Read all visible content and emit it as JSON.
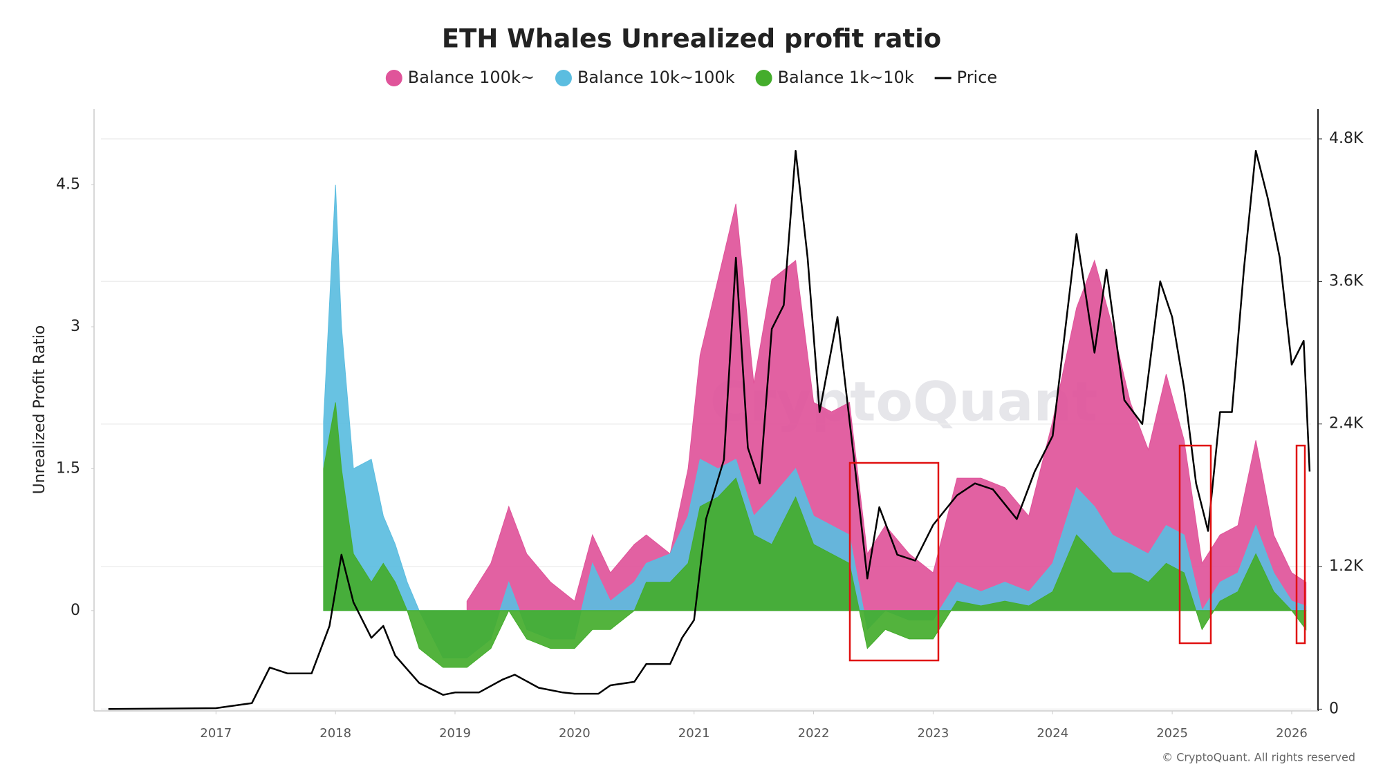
{
  "chart_data": {
    "type": "area-line",
    "title": "ETH Whales Unrealized profit ratio",
    "y_label": "Unrealized Profit Ratio",
    "watermark": "CryptoQuant",
    "credit": "© CryptoQuant. All rights reserved",
    "xlim": [
      2015.98,
      2026.22
    ],
    "xticks": [
      2017,
      2018,
      2019,
      2020,
      2021,
      2022,
      2023,
      2024,
      2025,
      2026
    ],
    "ylim": [
      -1.06,
      5.3
    ],
    "yticks": [
      0,
      1.5,
      3,
      4.5
    ],
    "y2lim": [
      -15,
      5050
    ],
    "y2ticks": [
      0,
      {
        "value": 1200,
        "label": "1.2K"
      },
      {
        "value": 2400,
        "label": "2.4K"
      },
      {
        "value": 3600,
        "label": "3.6K"
      },
      {
        "value": 4800,
        "label": "4.8K"
      }
    ],
    "grid": true,
    "series": [
      {
        "name": "Balance 100k~",
        "color": "#e0549a",
        "x": [
          2017.9,
          2018.0,
          2018.05,
          2018.15,
          2018.3,
          2018.4,
          2018.5,
          2018.6,
          2018.7,
          2018.9,
          2019.1,
          2019.3,
          2019.45,
          2019.6,
          2019.8,
          2020.0,
          2020.15,
          2020.3,
          2020.5,
          2020.6,
          2020.8,
          2020.95,
          2021.05,
          2021.2,
          2021.35,
          2021.5,
          2021.65,
          2021.85,
          2022.0,
          2022.15,
          2022.3,
          2022.45,
          2022.6,
          2022.8,
          2023.0,
          2023.2,
          2023.4,
          2023.6,
          2023.8,
          2024.0,
          2024.2,
          2024.35,
          2024.5,
          2024.65,
          2024.8,
          2024.95,
          2025.1,
          2025.25,
          2025.4,
          2025.55,
          2025.7,
          2025.85,
          2026.0,
          2026.12
        ],
        "values": [
          null,
          null,
          null,
          null,
          null,
          null,
          null,
          null,
          null,
          null,
          0.1,
          0.5,
          1.1,
          0.6,
          0.3,
          0.1,
          0.8,
          0.4,
          0.7,
          0.8,
          0.6,
          1.5,
          2.7,
          3.5,
          4.3,
          2.4,
          3.5,
          3.7,
          2.2,
          2.1,
          2.2,
          0.6,
          0.9,
          0.6,
          0.4,
          1.4,
          1.4,
          1.3,
          1.0,
          2.0,
          3.2,
          3.7,
          3.0,
          2.2,
          1.7,
          2.5,
          1.8,
          0.5,
          0.8,
          0.9,
          1.8,
          0.8,
          0.4,
          0.3
        ]
      },
      {
        "name": "Balance 10k~100k",
        "color": "#5bbde0",
        "x": [
          2017.9,
          2018.0,
          2018.05,
          2018.15,
          2018.3,
          2018.4,
          2018.5,
          2018.6,
          2018.7,
          2018.9,
          2019.1,
          2019.3,
          2019.45,
          2019.6,
          2019.8,
          2020.0,
          2020.15,
          2020.3,
          2020.5,
          2020.6,
          2020.8,
          2020.95,
          2021.05,
          2021.2,
          2021.35,
          2021.5,
          2021.65,
          2021.85,
          2022.0,
          2022.15,
          2022.3,
          2022.45,
          2022.6,
          2022.8,
          2023.0,
          2023.2,
          2023.4,
          2023.6,
          2023.8,
          2024.0,
          2024.2,
          2024.35,
          2024.5,
          2024.65,
          2024.8,
          2024.95,
          2025.1,
          2025.25,
          2025.4,
          2025.55,
          2025.7,
          2025.85,
          2026.0,
          2026.12
        ],
        "values": [
          2.0,
          4.5,
          3.0,
          1.5,
          1.6,
          1.0,
          0.7,
          0.3,
          0.0,
          -0.5,
          -0.5,
          -0.3,
          0.3,
          -0.2,
          -0.3,
          -0.3,
          0.5,
          0.1,
          0.3,
          0.5,
          0.6,
          1.0,
          1.6,
          1.5,
          1.6,
          1.0,
          1.2,
          1.5,
          1.0,
          0.9,
          0.8,
          -0.2,
          0.0,
          -0.1,
          -0.1,
          0.3,
          0.2,
          0.3,
          0.2,
          0.5,
          1.3,
          1.1,
          0.8,
          0.7,
          0.6,
          0.9,
          0.8,
          0.0,
          0.3,
          0.4,
          0.9,
          0.4,
          0.1,
          0.05
        ]
      },
      {
        "name": "Balance 1k~10k",
        "color": "#44ad2c",
        "x": [
          2017.9,
          2018.0,
          2018.05,
          2018.15,
          2018.3,
          2018.4,
          2018.5,
          2018.6,
          2018.7,
          2018.9,
          2019.1,
          2019.3,
          2019.45,
          2019.6,
          2019.8,
          2020.0,
          2020.15,
          2020.3,
          2020.5,
          2020.6,
          2020.8,
          2020.95,
          2021.05,
          2021.2,
          2021.35,
          2021.5,
          2021.65,
          2021.85,
          2022.0,
          2022.15,
          2022.3,
          2022.45,
          2022.6,
          2022.8,
          2023.0,
          2023.2,
          2023.4,
          2023.6,
          2023.8,
          2024.0,
          2024.2,
          2024.35,
          2024.5,
          2024.65,
          2024.8,
          2024.95,
          2025.1,
          2025.25,
          2025.4,
          2025.55,
          2025.7,
          2025.85,
          2026.0,
          2026.12
        ],
        "values": [
          1.5,
          2.2,
          1.5,
          0.6,
          0.3,
          0.5,
          0.3,
          0.0,
          -0.4,
          -0.6,
          -0.6,
          -0.4,
          0.0,
          -0.3,
          -0.4,
          -0.4,
          -0.2,
          -0.2,
          0.0,
          0.3,
          0.3,
          0.5,
          1.1,
          1.2,
          1.4,
          0.8,
          0.7,
          1.2,
          0.7,
          0.6,
          0.5,
          -0.4,
          -0.2,
          -0.3,
          -0.3,
          0.1,
          0.05,
          0.1,
          0.05,
          0.2,
          0.8,
          0.6,
          0.4,
          0.4,
          0.3,
          0.5,
          0.4,
          -0.2,
          0.1,
          0.2,
          0.6,
          0.2,
          0.0,
          -0.2
        ]
      },
      {
        "name": "Price",
        "color": "#000000",
        "axis": "y2",
        "x": [
          2016.1,
          2017.0,
          2017.3,
          2017.45,
          2017.6,
          2017.8,
          2017.95,
          2018.05,
          2018.15,
          2018.3,
          2018.4,
          2018.5,
          2018.7,
          2018.9,
          2019.0,
          2019.2,
          2019.4,
          2019.5,
          2019.7,
          2019.9,
          2020.0,
          2020.2,
          2020.3,
          2020.5,
          2020.6,
          2020.8,
          2020.9,
          2021.0,
          2021.1,
          2021.25,
          2021.35,
          2021.45,
          2021.55,
          2021.65,
          2021.75,
          2021.85,
          2021.95,
          2022.05,
          2022.2,
          2022.35,
          2022.45,
          2022.55,
          2022.7,
          2022.85,
          2023.0,
          2023.2,
          2023.35,
          2023.5,
          2023.7,
          2023.85,
          2024.0,
          2024.2,
          2024.35,
          2024.45,
          2024.6,
          2024.75,
          2024.9,
          2025.0,
          2025.1,
          2025.2,
          2025.3,
          2025.4,
          2025.5,
          2025.6,
          2025.7,
          2025.8,
          2025.9,
          2026.0,
          2026.1,
          2026.15
        ],
        "values": [
          1,
          8,
          50,
          350,
          300,
          300,
          700,
          1300,
          900,
          600,
          700,
          450,
          220,
          120,
          140,
          140,
          250,
          290,
          180,
          140,
          130,
          130,
          200,
          230,
          380,
          380,
          600,
          750,
          1600,
          2100,
          3800,
          2200,
          1900,
          3200,
          3400,
          4700,
          3800,
          2500,
          3300,
          2000,
          1100,
          1700,
          1300,
          1250,
          1550,
          1800,
          1900,
          1850,
          1600,
          2000,
          2300,
          4000,
          3000,
          3700,
          2600,
          2400,
          3600,
          3300,
          2700,
          1900,
          1500,
          2500,
          2500,
          3700,
          4700,
          4300,
          3800,
          2900,
          3100,
          2000
        ]
      }
    ]
  }
}
